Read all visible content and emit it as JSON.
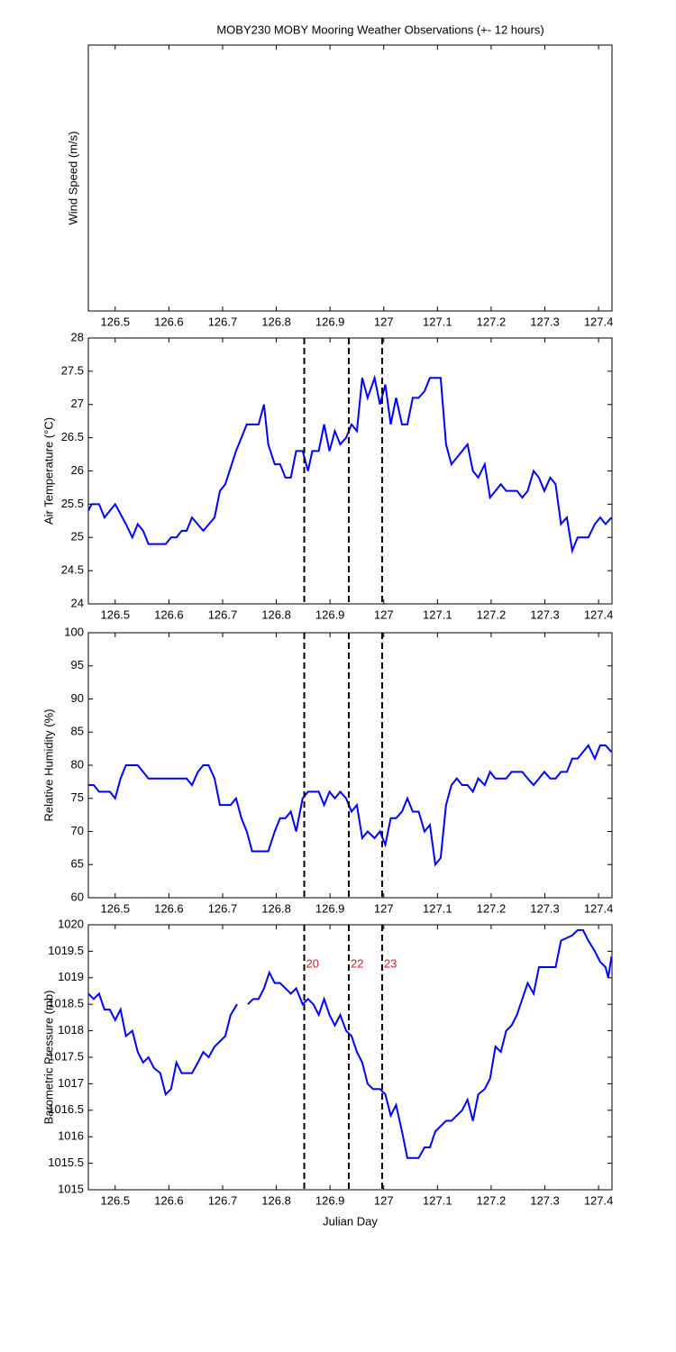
{
  "chart_data": [
    {
      "type": "line",
      "title": "MOBY230 MOBY Mooring Weather Observations (+- 12 hours)",
      "ylabel": "Wind Speed (m/s)",
      "xlim": [
        126.45,
        127.425
      ],
      "xticks": [
        126.5,
        126.6,
        126.7,
        126.8,
        126.9,
        127,
        127.1,
        127.2,
        127.3,
        127.4
      ]
    },
    {
      "type": "line",
      "ylabel": "Air Temperature (°C)",
      "color": "#0000ff",
      "xlim": [
        126.45,
        127.425
      ],
      "xticks": [
        126.5,
        126.6,
        126.7,
        126.8,
        126.9,
        127,
        127.1,
        127.2,
        127.3,
        127.4
      ],
      "ylim": [
        24,
        28
      ],
      "yticks": [
        24,
        24.5,
        25,
        25.5,
        26,
        26.5,
        27,
        27.5,
        28
      ],
      "vlines": [
        126.852,
        126.935,
        126.997
      ],
      "x": [
        126.45,
        126.456,
        126.47,
        126.48,
        126.5,
        126.52,
        126.532,
        126.542,
        126.552,
        126.562,
        126.594,
        126.604,
        126.614,
        126.624,
        126.633,
        126.643,
        126.664,
        126.685,
        126.695,
        126.705,
        126.725,
        126.735,
        126.745,
        126.767,
        126.777,
        126.785,
        126.797,
        126.807,
        126.817,
        126.827,
        126.837,
        126.849,
        126.859,
        126.867,
        126.879,
        126.889,
        126.899,
        126.909,
        126.919,
        126.93,
        126.94,
        126.95,
        126.96,
        126.97,
        126.983,
        126.993,
        127.003,
        127.013,
        127.023,
        127.034,
        127.044,
        127.054,
        127.065,
        127.076,
        127.086,
        127.106,
        127.116,
        127.126,
        127.136,
        127.156,
        127.166,
        127.176,
        127.188,
        127.198,
        127.218,
        127.228,
        127.248,
        127.258,
        127.268,
        127.279,
        127.289,
        127.299,
        127.31,
        127.32,
        127.33,
        127.341,
        127.351,
        127.361,
        127.381,
        127.393,
        127.403,
        127.413,
        127.424
      ],
      "values": [
        25.4,
        25.5,
        25.5,
        25.3,
        25.5,
        25.2,
        25.0,
        25.2,
        25.1,
        24.9,
        24.9,
        25.0,
        25.0,
        25.1,
        25.1,
        25.3,
        25.1,
        25.3,
        25.7,
        25.8,
        26.3,
        26.5,
        26.7,
        26.7,
        27.0,
        26.4,
        26.1,
        26.1,
        25.9,
        25.9,
        26.3,
        26.3,
        26.0,
        26.3,
        26.3,
        26.7,
        26.3,
        26.6,
        26.4,
        26.5,
        26.7,
        26.6,
        27.4,
        27.1,
        27.4,
        27.0,
        27.3,
        26.7,
        27.1,
        26.7,
        26.7,
        27.1,
        27.1,
        27.2,
        27.4,
        27.4,
        26.4,
        26.1,
        26.2,
        26.4,
        26.0,
        25.9,
        26.1,
        25.6,
        25.8,
        25.7,
        25.7,
        25.6,
        25.7,
        26.0,
        25.9,
        25.7,
        25.9,
        25.8,
        25.2,
        25.3,
        24.8,
        25.0,
        25.0,
        25.2,
        25.3,
        25.2,
        25.3
      ]
    },
    {
      "type": "line",
      "ylabel": "Relative Humidity (%)",
      "color": "#0000ff",
      "xlim": [
        126.45,
        127.425
      ],
      "xticks": [
        126.5,
        126.6,
        126.7,
        126.8,
        126.9,
        127,
        127.1,
        127.2,
        127.3,
        127.4
      ],
      "ylim": [
        60,
        100
      ],
      "yticks": [
        60,
        65,
        70,
        75,
        80,
        85,
        90,
        95,
        100
      ],
      "vlines": [
        126.852,
        126.935,
        126.997
      ],
      "x": [
        126.45,
        126.46,
        126.47,
        126.49,
        126.5,
        126.51,
        126.52,
        126.542,
        126.562,
        126.633,
        126.643,
        126.654,
        126.664,
        126.674,
        126.685,
        126.695,
        126.715,
        126.725,
        126.735,
        126.745,
        126.755,
        126.785,
        126.797,
        126.807,
        126.817,
        126.827,
        126.837,
        126.849,
        126.859,
        126.879,
        126.889,
        126.899,
        126.909,
        126.919,
        126.93,
        126.94,
        126.95,
        126.96,
        126.97,
        126.983,
        126.993,
        127.003,
        127.013,
        127.023,
        127.034,
        127.044,
        127.054,
        127.065,
        127.076,
        127.086,
        127.096,
        127.106,
        127.116,
        127.126,
        127.136,
        127.146,
        127.156,
        127.166,
        127.176,
        127.188,
        127.198,
        127.208,
        127.228,
        127.238,
        127.258,
        127.268,
        127.279,
        127.289,
        127.299,
        127.31,
        127.32,
        127.33,
        127.341,
        127.351,
        127.361,
        127.381,
        127.393,
        127.403,
        127.413,
        127.424
      ],
      "values": [
        77,
        77,
        76,
        76,
        75,
        78,
        80,
        80,
        78,
        78,
        77,
        79,
        80,
        80,
        78,
        74,
        74,
        75,
        72,
        70,
        67,
        67,
        70,
        72,
        72,
        73,
        70,
        75,
        76,
        76,
        74,
        76,
        75,
        76,
        75,
        73,
        74,
        69,
        70,
        69,
        70,
        68,
        72,
        72,
        73,
        75,
        73,
        73,
        70,
        71,
        65,
        66,
        74,
        77,
        78,
        77,
        77,
        76,
        78,
        77,
        79,
        78,
        78,
        79,
        79,
        78,
        77,
        78,
        79,
        78,
        78,
        79,
        79,
        81,
        81,
        83,
        81,
        83,
        83,
        82
      ]
    },
    {
      "type": "line",
      "ylabel": "Barometric Pressure (mb)",
      "xlabel": "Julian Day",
      "color": "#0000ff",
      "xlim": [
        126.45,
        127.425
      ],
      "xticks": [
        126.5,
        126.6,
        126.7,
        126.8,
        126.9,
        127,
        127.1,
        127.2,
        127.3,
        127.4
      ],
      "ylim": [
        1015,
        1020
      ],
      "yticks": [
        1015,
        1015.5,
        1016,
        1016.5,
        1017,
        1017.5,
        1018,
        1018.5,
        1019,
        1019.5,
        1020
      ],
      "vlines": [
        126.852,
        126.935,
        126.997
      ],
      "vline_labels": [
        "20",
        "22",
        "23"
      ],
      "vline_label_color": "#cc2222",
      "x": [
        126.45,
        126.46,
        126.47,
        126.48,
        126.49,
        126.5,
        126.51,
        126.52,
        126.532,
        126.542,
        126.552,
        126.562,
        126.572,
        126.584,
        126.594,
        126.604,
        126.614,
        126.624,
        126.643,
        126.654,
        126.664,
        126.674,
        126.685,
        126.705,
        126.715,
        126.727,
        126.737,
        126.747,
        126.757,
        126.767,
        126.777,
        126.787,
        126.797,
        126.807,
        126.827,
        126.837,
        126.849,
        126.859,
        126.869,
        126.879,
        126.889,
        126.899,
        126.909,
        126.919,
        126.93,
        126.94,
        126.95,
        126.96,
        126.97,
        126.98,
        126.993,
        127.003,
        127.013,
        127.023,
        127.034,
        127.044,
        127.065,
        127.076,
        127.086,
        127.096,
        127.116,
        127.126,
        127.146,
        127.156,
        127.166,
        127.176,
        127.188,
        127.198,
        127.208,
        127.218,
        127.228,
        127.238,
        127.248,
        127.258,
        127.268,
        127.279,
        127.289,
        127.32,
        127.33,
        127.351,
        127.361,
        127.371,
        127.381,
        127.393,
        127.403,
        127.413,
        127.418,
        127.424
      ],
      "values": [
        1018.7,
        1018.6,
        1018.7,
        1018.4,
        1018.4,
        1018.2,
        1018.4,
        1017.9,
        1018.0,
        1017.6,
        1017.4,
        1017.5,
        1017.3,
        1017.2,
        1016.8,
        1016.9,
        1017.4,
        1017.2,
        1017.2,
        1017.4,
        1017.6,
        1017.5,
        1017.7,
        1017.9,
        1018.3,
        1018.5,
        null,
        1018.5,
        1018.6,
        1018.6,
        1018.8,
        1019.1,
        1018.9,
        1018.9,
        1018.7,
        1018.8,
        1018.5,
        1018.6,
        1018.5,
        1018.3,
        1018.6,
        1018.3,
        1018.1,
        1018.3,
        1018.0,
        1017.9,
        1017.6,
        1017.4,
        1017.0,
        1016.9,
        1016.9,
        1016.8,
        1016.4,
        1016.6,
        1016.1,
        1015.6,
        1015.6,
        1015.8,
        1015.8,
        1016.1,
        1016.3,
        1016.3,
        1016.5,
        1016.7,
        1016.3,
        1016.8,
        1016.9,
        1017.1,
        1017.7,
        1017.6,
        1018.0,
        1018.1,
        1018.3,
        1018.6,
        1018.9,
        1018.7,
        1019.2,
        1019.2,
        1019.7,
        1019.8,
        1019.9,
        1019.9,
        1019.7,
        1019.5,
        1019.3,
        1019.2,
        1019.0,
        1019.4
      ]
    }
  ]
}
